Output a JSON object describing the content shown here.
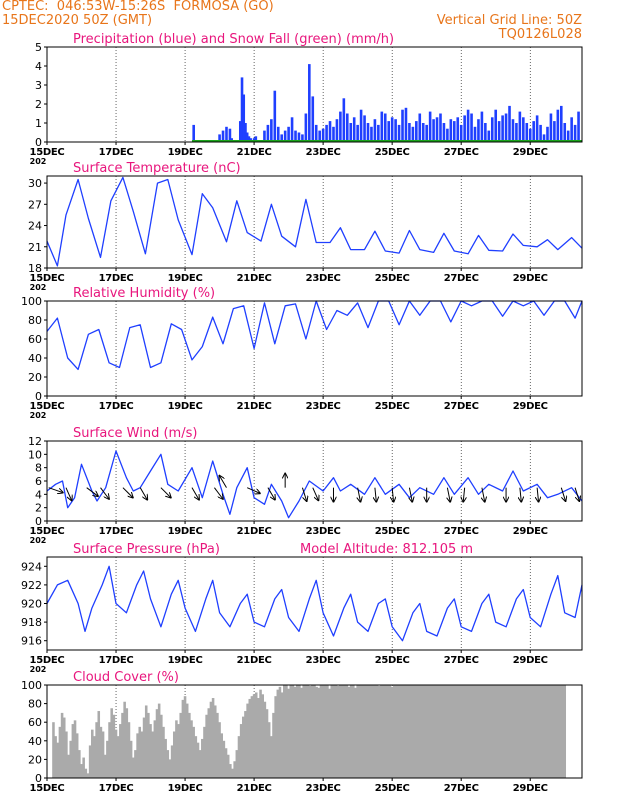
{
  "header": {
    "line1_left": "CPTEC:  046:53W-15:26S  FORMOSA (GO)",
    "line2_left": "15DEC2020 50Z (GMT)",
    "line2_right": "Vertical Grid Line: 50Z",
    "line3_right": "TQ0126L028",
    "color": "#e8751a"
  },
  "colors": {
    "title": "#e8167d",
    "series": "#1f3fff",
    "snow": "#1ba51b",
    "cloud": "#aaaaaa",
    "wind_arrow": "#000000"
  },
  "x_axis": {
    "ticks": [
      "15DEC",
      "17DEC",
      "19DEC",
      "21DEC",
      "23DEC",
      "25DEC",
      "27DEC",
      "29DEC"
    ],
    "tick_days": [
      0,
      2,
      4,
      6,
      8,
      10,
      12,
      14
    ],
    "range_days": [
      0,
      15.5
    ],
    "year_stub": "202"
  },
  "chart_data": [
    {
      "type": "bar",
      "title": "Precipitation (blue) and Snow Fall (green) (mm/h)",
      "ylim": [
        0,
        5
      ],
      "yticks": [
        0,
        1,
        2,
        3,
        4,
        5
      ],
      "x_days": [
        4.25,
        5.0,
        5.1,
        5.2,
        5.3,
        5.35,
        5.6,
        5.65,
        5.7,
        5.75,
        5.8,
        5.85,
        5.9,
        6.0,
        6.05,
        6.3,
        6.4,
        6.5,
        6.6,
        6.7,
        6.8,
        6.9,
        7.0,
        7.1,
        7.2,
        7.3,
        7.4,
        7.5,
        7.6,
        7.7,
        7.8,
        7.9,
        8.0,
        8.1,
        8.2,
        8.3,
        8.4,
        8.5,
        8.6,
        8.7,
        8.8,
        8.9,
        9.0,
        9.1,
        9.2,
        9.3,
        9.4,
        9.5,
        9.6,
        9.7,
        9.8,
        9.9,
        10.0,
        10.1,
        10.2,
        10.3,
        10.4,
        10.5,
        10.6,
        10.7,
        10.8,
        10.9,
        11.0,
        11.1,
        11.2,
        11.3,
        11.4,
        11.5,
        11.6,
        11.7,
        11.8,
        11.9,
        12.0,
        12.1,
        12.2,
        12.3,
        12.4,
        12.5,
        12.6,
        12.7,
        12.8,
        12.9,
        13.0,
        13.1,
        13.2,
        13.3,
        13.4,
        13.5,
        13.6,
        13.7,
        13.8,
        13.9,
        14.0,
        14.1,
        14.2,
        14.3,
        14.4,
        14.5,
        14.6,
        14.7,
        14.8,
        14.9,
        15.0,
        15.1,
        15.2,
        15.3,
        15.4
      ],
      "precip": [
        0.9,
        0.4,
        0.6,
        0.8,
        0.7,
        0.2,
        1.1,
        3.4,
        2.5,
        1.0,
        0.5,
        0.3,
        0.2,
        0.2,
        0.3,
        0.6,
        0.9,
        1.2,
        2.7,
        0.8,
        0.4,
        0.6,
        0.8,
        1.3,
        0.6,
        0.5,
        0.4,
        1.5,
        4.1,
        2.4,
        0.9,
        0.6,
        0.7,
        0.9,
        1.1,
        0.8,
        1.2,
        1.6,
        2.3,
        1.5,
        1.0,
        1.3,
        0.9,
        1.7,
        1.4,
        1.0,
        0.8,
        1.2,
        0.9,
        1.6,
        1.5,
        1.1,
        1.3,
        1.2,
        0.9,
        1.7,
        1.8,
        1.0,
        0.8,
        1.1,
        1.5,
        1.0,
        0.9,
        1.6,
        1.2,
        1.3,
        1.5,
        1.0,
        0.7,
        1.2,
        1.1,
        1.3,
        0.9,
        1.4,
        1.7,
        1.5,
        0.8,
        1.2,
        1.6,
        1.0,
        0.6,
        1.3,
        1.7,
        1.1,
        1.4,
        1.5,
        1.9,
        1.2,
        1.0,
        1.6,
        1.3,
        1.0,
        0.7,
        1.1,
        1.4,
        0.9,
        0.4,
        0.8,
        1.5,
        1.1,
        1.7,
        1.9,
        1.0,
        0.6,
        1.3,
        0.9,
        1.6
      ],
      "snow": 0.05
    },
    {
      "type": "line",
      "title": "Surface Temperature (nC)",
      "ylim": [
        18,
        31
      ],
      "yticks": [
        18,
        21,
        24,
        27,
        30
      ],
      "x_days": [
        0.0,
        0.3,
        0.55,
        0.9,
        1.2,
        1.55,
        1.85,
        2.2,
        2.5,
        2.85,
        3.2,
        3.5,
        3.8,
        4.2,
        4.5,
        4.8,
        5.2,
        5.5,
        5.8,
        6.2,
        6.5,
        6.8,
        7.2,
        7.5,
        7.8,
        8.2,
        8.5,
        8.8,
        9.2,
        9.5,
        9.8,
        10.2,
        10.5,
        10.8,
        11.2,
        11.5,
        11.8,
        12.2,
        12.5,
        12.8,
        13.2,
        13.5,
        13.8,
        14.2,
        14.5,
        14.8,
        15.2,
        15.5
      ],
      "values": [
        21.8,
        18.3,
        25.5,
        30.5,
        25.0,
        19.5,
        27.5,
        30.8,
        26.0,
        20.0,
        30.0,
        30.5,
        24.8,
        19.9,
        28.5,
        26.5,
        21.7,
        27.5,
        23.0,
        21.8,
        27.0,
        22.5,
        21.0,
        27.7,
        21.6,
        21.6,
        23.7,
        20.6,
        20.6,
        23.2,
        20.4,
        20.1,
        23.3,
        20.6,
        20.2,
        22.9,
        20.4,
        20.0,
        22.6,
        20.5,
        20.4,
        22.8,
        21.2,
        21.0,
        22.0,
        20.6,
        22.3,
        20.8
      ]
    },
    {
      "type": "line",
      "title": "Relative Humidity (%)",
      "ylim": [
        0,
        100
      ],
      "yticks": [
        0,
        20,
        40,
        60,
        80,
        100
      ],
      "x_days": [
        0.0,
        0.3,
        0.6,
        0.9,
        1.2,
        1.5,
        1.8,
        2.1,
        2.4,
        2.7,
        3.0,
        3.3,
        3.6,
        3.9,
        4.2,
        4.5,
        4.8,
        5.1,
        5.4,
        5.7,
        6.0,
        6.3,
        6.6,
        6.9,
        7.2,
        7.5,
        7.8,
        8.1,
        8.4,
        8.7,
        9.0,
        9.3,
        9.6,
        9.9,
        10.2,
        10.5,
        10.8,
        11.1,
        11.4,
        11.7,
        12.0,
        12.3,
        12.6,
        12.9,
        13.2,
        13.5,
        13.8,
        14.1,
        14.4,
        14.7,
        15.0,
        15.3,
        15.5
      ],
      "values": [
        68,
        82,
        40,
        28,
        65,
        70,
        35,
        30,
        72,
        75,
        30,
        35,
        76,
        70,
        38,
        52,
        83,
        55,
        92,
        95,
        50,
        98,
        55,
        95,
        97,
        60,
        100,
        70,
        90,
        85,
        98,
        72,
        100,
        100,
        75,
        100,
        85,
        100,
        100,
        78,
        100,
        95,
        100,
        100,
        84,
        100,
        95,
        100,
        85,
        100,
        100,
        82,
        100
      ]
    },
    {
      "type": "line",
      "title": "Surface Wind (m/s)",
      "ylim": [
        0,
        12
      ],
      "yticks": [
        0,
        2,
        4,
        6,
        8,
        10,
        12
      ],
      "x_days": [
        0.0,
        0.25,
        0.45,
        0.6,
        0.8,
        1.0,
        1.3,
        1.45,
        1.7,
        2.0,
        2.3,
        2.5,
        2.7,
        3.0,
        3.3,
        3.5,
        3.8,
        4.2,
        4.5,
        4.8,
        5.1,
        5.3,
        5.5,
        5.8,
        6.0,
        6.3,
        6.5,
        6.8,
        7.0,
        7.3,
        7.6,
        8.0,
        8.3,
        8.5,
        8.8,
        9.2,
        9.5,
        9.8,
        10.2,
        10.5,
        10.8,
        11.2,
        11.5,
        11.8,
        12.2,
        12.5,
        12.8,
        13.2,
        13.5,
        13.8,
        14.2,
        14.5,
        14.8,
        15.2,
        15.5
      ],
      "values": [
        4.5,
        5.5,
        6.0,
        2.0,
        3.5,
        8.5,
        4.5,
        3.0,
        5.0,
        10.5,
        6.5,
        4.5,
        5.0,
        7.5,
        10.0,
        5.5,
        4.5,
        8.0,
        3.5,
        9.0,
        4.0,
        1.0,
        5.0,
        8.0,
        3.5,
        2.5,
        5.5,
        3.0,
        0.5,
        3.0,
        6.0,
        4.5,
        6.5,
        4.5,
        5.5,
        4.0,
        6.5,
        4.0,
        5.5,
        3.5,
        5.0,
        4.0,
        6.5,
        4.0,
        6.5,
        4.0,
        5.5,
        4.5,
        7.5,
        4.5,
        5.5,
        3.5,
        4.0,
        5.0,
        3.0
      ],
      "arrows": [
        {
          "day": 0.05,
          "dx": 1,
          "dy": -0.35
        },
        {
          "day": 0.55,
          "dx": 0.4,
          "dy": -0.9
        },
        {
          "day": 1.15,
          "dx": 0.8,
          "dy": -0.6
        },
        {
          "day": 1.55,
          "dx": 0.6,
          "dy": -0.8
        },
        {
          "day": 2.2,
          "dx": 0.7,
          "dy": -0.7
        },
        {
          "day": 2.7,
          "dx": 0.5,
          "dy": -0.85
        },
        {
          "day": 3.3,
          "dx": 0.7,
          "dy": -0.7
        },
        {
          "day": 4.2,
          "dx": 0.5,
          "dy": -0.85
        },
        {
          "day": 4.85,
          "dx": 0.6,
          "dy": -0.8
        },
        {
          "day": 5.2,
          "dx": -0.5,
          "dy": 0.85
        },
        {
          "day": 5.8,
          "dx": 0.9,
          "dy": -0.4
        },
        {
          "day": 6.4,
          "dx": 0.5,
          "dy": -0.85
        },
        {
          "day": 6.9,
          "dx": 0,
          "dy": 1
        },
        {
          "day": 7.4,
          "dx": 0.3,
          "dy": -0.95
        },
        {
          "day": 7.7,
          "dx": 0.4,
          "dy": -0.9
        },
        {
          "day": 8.3,
          "dx": 0,
          "dy": -1
        },
        {
          "day": 9.0,
          "dx": 0.2,
          "dy": -1
        },
        {
          "day": 9.5,
          "dx": 0.1,
          "dy": -1
        },
        {
          "day": 10.0,
          "dx": 0.1,
          "dy": -1
        },
        {
          "day": 10.5,
          "dx": 0.2,
          "dy": -1
        },
        {
          "day": 11.0,
          "dx": 0,
          "dy": -1
        },
        {
          "day": 11.6,
          "dx": 0.2,
          "dy": -1
        },
        {
          "day": 12.1,
          "dx": -0.1,
          "dy": -1
        },
        {
          "day": 12.6,
          "dx": 0.2,
          "dy": -1
        },
        {
          "day": 13.3,
          "dx": 0,
          "dy": -1
        },
        {
          "day": 13.7,
          "dx": 0.1,
          "dy": -1
        },
        {
          "day": 14.2,
          "dx": 0.1,
          "dy": -1
        },
        {
          "day": 14.9,
          "dx": 0.3,
          "dy": -0.95
        },
        {
          "day": 15.3,
          "dx": 0.3,
          "dy": -0.95
        }
      ]
    },
    {
      "type": "line",
      "title": "Surface Pressure (hPa)",
      "subtitle": "Model Altitude: 812.105 m",
      "ylim": [
        915,
        925
      ],
      "yticks": [
        916,
        918,
        920,
        922,
        924
      ],
      "x_days": [
        0.0,
        0.3,
        0.6,
        0.9,
        1.1,
        1.3,
        1.6,
        1.8,
        2.0,
        2.3,
        2.6,
        2.8,
        3.0,
        3.3,
        3.6,
        3.8,
        4.0,
        4.3,
        4.6,
        4.8,
        5.0,
        5.3,
        5.6,
        5.8,
        6.0,
        6.3,
        6.6,
        6.8,
        7.0,
        7.3,
        7.6,
        7.8,
        8.0,
        8.3,
        8.6,
        8.8,
        9.0,
        9.3,
        9.6,
        9.8,
        10.0,
        10.3,
        10.6,
        10.8,
        11.0,
        11.3,
        11.6,
        11.8,
        12.0,
        12.3,
        12.6,
        12.8,
        13.0,
        13.3,
        13.6,
        13.8,
        14.0,
        14.3,
        14.6,
        14.8,
        15.0,
        15.3,
        15.5
      ],
      "values": [
        920.0,
        922.0,
        922.5,
        920.0,
        917.0,
        919.5,
        922.0,
        924.0,
        920.0,
        919.0,
        922.0,
        923.5,
        920.5,
        917.5,
        921.0,
        922.5,
        919.5,
        917.0,
        920.5,
        922.5,
        919.0,
        917.5,
        920.0,
        921.0,
        918.0,
        917.5,
        920.5,
        921.5,
        918.5,
        917.0,
        920.5,
        922.5,
        919.0,
        916.5,
        919.5,
        921.0,
        918.0,
        917.0,
        920.0,
        920.5,
        917.5,
        916.0,
        919.0,
        920.0,
        917.0,
        916.5,
        919.5,
        920.5,
        917.5,
        917.0,
        920.0,
        921.0,
        918.0,
        917.5,
        920.5,
        921.5,
        918.5,
        917.5,
        921.0,
        923.0,
        919.0,
        918.5,
        922.0
      ]
    },
    {
      "type": "bar",
      "title": "Cloud Cover (%)",
      "ylim": [
        0,
        100
      ],
      "yticks": [
        0,
        20,
        40,
        60,
        80,
        100
      ],
      "x_start_day": 0.15,
      "x_step_days": 0.0625,
      "values": [
        60,
        45,
        38,
        55,
        70,
        65,
        50,
        25,
        40,
        58,
        62,
        48,
        30,
        15,
        22,
        10,
        5,
        35,
        52,
        45,
        60,
        72,
        55,
        50,
        25,
        40,
        60,
        75,
        68,
        52,
        45,
        58,
        70,
        82,
        75,
        60,
        40,
        22,
        30,
        48,
        55,
        50,
        65,
        78,
        70,
        58,
        50,
        62,
        74,
        80,
        68,
        55,
        42,
        30,
        20,
        35,
        50,
        62,
        58,
        70,
        84,
        88,
        80,
        70,
        62,
        55,
        45,
        38,
        30,
        42,
        55,
        68,
        75,
        82,
        86,
        78,
        70,
        60,
        48,
        40,
        32,
        25,
        15,
        10,
        18,
        30,
        45,
        58,
        66,
        72,
        80,
        85,
        88,
        90,
        92,
        86,
        95,
        90,
        82,
        74,
        60,
        45,
        70,
        88,
        95,
        98,
        92,
        100,
        100,
        96,
        100,
        100,
        98,
        100,
        100,
        97,
        100,
        100,
        100,
        99,
        100,
        100,
        98,
        97,
        100,
        100,
        100,
        100,
        96,
        100,
        100,
        100,
        99,
        100,
        100,
        100,
        100,
        98,
        100,
        100,
        97,
        100,
        100,
        100,
        100,
        100,
        100,
        100,
        100,
        100,
        100,
        99,
        100,
        100,
        100,
        100,
        100,
        98,
        100,
        100,
        100,
        100,
        100,
        100,
        100,
        100,
        100,
        100,
        100,
        100,
        100,
        100,
        100,
        100,
        100,
        100,
        100,
        100,
        100,
        100,
        100,
        100,
        100,
        100,
        100,
        100,
        100,
        100,
        100,
        100,
        100,
        100,
        100,
        100,
        100,
        100,
        100,
        100,
        100,
        100,
        100,
        100,
        100,
        100,
        100,
        100,
        100,
        100,
        100,
        100,
        100,
        100,
        100,
        100,
        100,
        100,
        100,
        100,
        100,
        100,
        100,
        100,
        100,
        100,
        100,
        100,
        100,
        100,
        100,
        100,
        100,
        100,
        100,
        100,
        100,
        100,
        100,
        100
      ]
    }
  ]
}
